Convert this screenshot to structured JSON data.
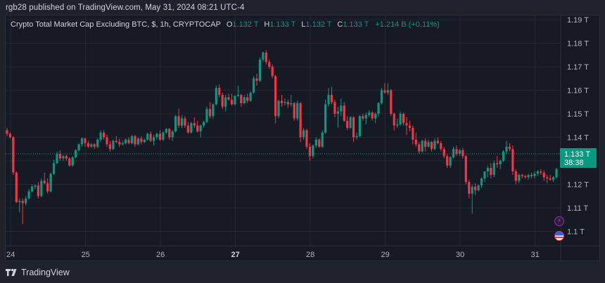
{
  "publisher_line": "rgb28 published on TradingView.com, May 31, 2024 08:21 UTC-4",
  "legend": {
    "title": "Crypto Total Market Cap Excluding BTC, $, 1h, CRYPTOCAP",
    "open_label": "O",
    "open": "1.132 T",
    "high_label": "H",
    "high": "1.133 T",
    "low_label": "L",
    "low": "1.132 T",
    "close_label": "C",
    "close": "1.133 T",
    "change": "+1.214 B (+0.11%)"
  },
  "price_tag": {
    "price": "1.133 T",
    "countdown": "38:38"
  },
  "footer": {
    "brand": "TradingView"
  },
  "colors": {
    "up": "#089981",
    "down": "#f23645",
    "background": "#161a25",
    "grid": "#232733",
    "price_line": "#089981"
  },
  "icons": [
    "lightning-event-icon",
    "us-flag-event-icon",
    "tradingview-logo-icon"
  ],
  "chart_data": {
    "type": "candlestick",
    "title": "Crypto Total Market Cap Excluding BTC, $, 1h, CRYPTOCAP",
    "xlabel": "",
    "ylabel": "",
    "x_ticks": [
      "24",
      "25",
      "26",
      "27",
      "28",
      "29",
      "30",
      "31"
    ],
    "bold_x_tick": "27",
    "y_ticks": [
      "1.19 T",
      "1.18 T",
      "1.17 T",
      "1.16 T",
      "1.15 T",
      "1.14 T",
      "1.13 T",
      "1.12 T",
      "1.11 T",
      "1.1 T"
    ],
    "ylim": [
      1.0945,
      1.1935
    ],
    "grid": true,
    "current_price": 1.133,
    "candles_ohlc": [
      [
        1.143,
        1.144,
        1.1405,
        1.1415
      ],
      [
        1.1415,
        1.142,
        1.1395,
        1.14
      ],
      [
        1.14,
        1.1405,
        1.124,
        1.125
      ],
      [
        1.125,
        1.1255,
        1.112,
        1.1125
      ],
      [
        1.1125,
        1.114,
        1.108,
        1.113
      ],
      [
        1.113,
        1.114,
        1.103,
        1.112
      ],
      [
        1.112,
        1.115,
        1.111,
        1.114
      ],
      [
        1.114,
        1.118,
        1.1135,
        1.117
      ],
      [
        1.117,
        1.12,
        1.1165,
        1.119
      ],
      [
        1.119,
        1.12,
        1.118,
        1.1195
      ],
      [
        1.1195,
        1.121,
        1.114,
        1.115
      ],
      [
        1.115,
        1.1225,
        1.1145,
        1.1215
      ],
      [
        1.1215,
        1.125,
        1.12,
        1.1205
      ],
      [
        1.1205,
        1.1225,
        1.116,
        1.117
      ],
      [
        1.117,
        1.125,
        1.1165,
        1.1245
      ],
      [
        1.1245,
        1.1305,
        1.124,
        1.129
      ],
      [
        1.129,
        1.134,
        1.1285,
        1.133
      ],
      [
        1.133,
        1.1345,
        1.13,
        1.131
      ],
      [
        1.131,
        1.1325,
        1.13,
        1.132
      ],
      [
        1.132,
        1.1325,
        1.13,
        1.131
      ],
      [
        1.131,
        1.1315,
        1.1275,
        1.128
      ],
      [
        1.128,
        1.132,
        1.1275,
        1.1315
      ],
      [
        1.1315,
        1.135,
        1.131,
        1.1345
      ],
      [
        1.1345,
        1.1375,
        1.134,
        1.137
      ],
      [
        1.137,
        1.14,
        1.136,
        1.1395
      ],
      [
        1.1395,
        1.1398,
        1.136,
        1.1375
      ],
      [
        1.1375,
        1.1385,
        1.1355,
        1.136
      ],
      [
        1.136,
        1.1375,
        1.1355,
        1.137
      ],
      [
        1.137,
        1.1375,
        1.135,
        1.136
      ],
      [
        1.136,
        1.1395,
        1.1355,
        1.139
      ],
      [
        1.139,
        1.143,
        1.138,
        1.142
      ],
      [
        1.142,
        1.143,
        1.139,
        1.14
      ],
      [
        1.14,
        1.141,
        1.136,
        1.137
      ],
      [
        1.137,
        1.1385,
        1.134,
        1.135
      ],
      [
        1.135,
        1.139,
        1.1345,
        1.1385
      ],
      [
        1.1385,
        1.1405,
        1.1375,
        1.138
      ],
      [
        1.138,
        1.1395,
        1.136,
        1.137
      ],
      [
        1.137,
        1.1385,
        1.1365,
        1.1375
      ],
      [
        1.1375,
        1.1395,
        1.137,
        1.139
      ],
      [
        1.139,
        1.14,
        1.137,
        1.1375
      ],
      [
        1.1375,
        1.141,
        1.137,
        1.1405
      ],
      [
        1.1405,
        1.141,
        1.136,
        1.137
      ],
      [
        1.137,
        1.14,
        1.1365,
        1.1395
      ],
      [
        1.1395,
        1.1405,
        1.137,
        1.138
      ],
      [
        1.138,
        1.1395,
        1.1375,
        1.139
      ],
      [
        1.139,
        1.142,
        1.1385,
        1.1415
      ],
      [
        1.1415,
        1.1425,
        1.138,
        1.1385
      ],
      [
        1.1385,
        1.141,
        1.1365,
        1.14
      ],
      [
        1.14,
        1.142,
        1.139,
        1.1415
      ],
      [
        1.1415,
        1.143,
        1.1385,
        1.139
      ],
      [
        1.139,
        1.1425,
        1.1385,
        1.142
      ],
      [
        1.142,
        1.144,
        1.1415,
        1.1435
      ],
      [
        1.1435,
        1.144,
        1.139,
        1.14
      ],
      [
        1.14,
        1.143,
        1.1385,
        1.1425
      ],
      [
        1.1425,
        1.1495,
        1.142,
        1.149
      ],
      [
        1.149,
        1.152,
        1.144,
        1.145
      ],
      [
        1.145,
        1.1495,
        1.144,
        1.148
      ],
      [
        1.148,
        1.149,
        1.144,
        1.145
      ],
      [
        1.145,
        1.1465,
        1.1415,
        1.142
      ],
      [
        1.142,
        1.1465,
        1.1415,
        1.146
      ],
      [
        1.146,
        1.1485,
        1.144,
        1.145
      ],
      [
        1.145,
        1.147,
        1.142,
        1.1425
      ],
      [
        1.1425,
        1.1455,
        1.14,
        1.145
      ],
      [
        1.145,
        1.147,
        1.144,
        1.1465
      ],
      [
        1.1465,
        1.153,
        1.146,
        1.152
      ],
      [
        1.152,
        1.155,
        1.148,
        1.149
      ],
      [
        1.149,
        1.1545,
        1.148,
        1.154
      ],
      [
        1.154,
        1.162,
        1.1535,
        1.161
      ],
      [
        1.161,
        1.1625,
        1.157,
        1.158
      ],
      [
        1.158,
        1.159,
        1.152,
        1.153
      ],
      [
        1.153,
        1.158,
        1.151,
        1.157
      ],
      [
        1.157,
        1.1585,
        1.1555,
        1.156
      ],
      [
        1.156,
        1.1585,
        1.1535,
        1.154
      ],
      [
        1.154,
        1.158,
        1.1535,
        1.1575
      ],
      [
        1.1575,
        1.162,
        1.157,
        1.158
      ],
      [
        1.158,
        1.1585,
        1.153,
        1.1545
      ],
      [
        1.1545,
        1.158,
        1.154,
        1.157
      ],
      [
        1.157,
        1.1585,
        1.1545,
        1.1555
      ],
      [
        1.1555,
        1.1595,
        1.155,
        1.159
      ],
      [
        1.159,
        1.166,
        1.1585,
        1.165
      ],
      [
        1.165,
        1.167,
        1.162,
        1.164
      ],
      [
        1.164,
        1.174,
        1.1635,
        1.173
      ],
      [
        1.173,
        1.1765,
        1.172,
        1.176
      ],
      [
        1.176,
        1.177,
        1.171,
        1.172
      ],
      [
        1.172,
        1.173,
        1.169,
        1.17
      ],
      [
        1.17,
        1.171,
        1.165,
        1.166
      ],
      [
        1.166,
        1.1665,
        1.146,
        1.149
      ],
      [
        1.149,
        1.156,
        1.148,
        1.1555
      ],
      [
        1.1555,
        1.158,
        1.153,
        1.1545
      ],
      [
        1.1545,
        1.1565,
        1.1535,
        1.155
      ],
      [
        1.155,
        1.156,
        1.1525,
        1.154
      ],
      [
        1.154,
        1.158,
        1.153,
        1.1545
      ],
      [
        1.1545,
        1.155,
        1.147,
        1.148
      ],
      [
        1.148,
        1.1555,
        1.147,
        1.1545
      ],
      [
        1.1545,
        1.155,
        1.138,
        1.14
      ],
      [
        1.14,
        1.144,
        1.139,
        1.143
      ],
      [
        1.143,
        1.1435,
        1.135,
        1.136
      ],
      [
        1.136,
        1.1375,
        1.13,
        1.132
      ],
      [
        1.132,
        1.137,
        1.131,
        1.1365
      ],
      [
        1.1365,
        1.14,
        1.1355,
        1.139
      ],
      [
        1.139,
        1.1395,
        1.1355,
        1.136
      ],
      [
        1.136,
        1.143,
        1.1355,
        1.142
      ],
      [
        1.142,
        1.156,
        1.1415,
        1.154
      ],
      [
        1.154,
        1.161,
        1.153,
        1.158
      ],
      [
        1.158,
        1.1615,
        1.154,
        1.155
      ],
      [
        1.155,
        1.156,
        1.1485,
        1.15
      ],
      [
        1.15,
        1.153,
        1.144,
        1.151
      ],
      [
        1.151,
        1.1565,
        1.149,
        1.1535
      ],
      [
        1.1535,
        1.155,
        1.1465,
        1.147
      ],
      [
        1.147,
        1.149,
        1.143,
        1.144
      ],
      [
        1.144,
        1.149,
        1.1435,
        1.1485
      ],
      [
        1.1485,
        1.149,
        1.138,
        1.14
      ],
      [
        1.14,
        1.142,
        1.139,
        1.1405
      ],
      [
        1.1405,
        1.1495,
        1.14,
        1.149
      ],
      [
        1.149,
        1.15,
        1.147,
        1.148
      ],
      [
        1.148,
        1.1505,
        1.1455,
        1.1495
      ],
      [
        1.1495,
        1.1515,
        1.1485,
        1.1505
      ],
      [
        1.1505,
        1.151,
        1.147,
        1.148
      ],
      [
        1.148,
        1.1505,
        1.146,
        1.15
      ],
      [
        1.15,
        1.155,
        1.149,
        1.1545
      ],
      [
        1.1545,
        1.161,
        1.154,
        1.16
      ],
      [
        1.16,
        1.163,
        1.1585,
        1.159
      ],
      [
        1.159,
        1.163,
        1.158,
        1.16
      ],
      [
        1.16,
        1.1605,
        1.149,
        1.15
      ],
      [
        1.15,
        1.1505,
        1.143,
        1.145
      ],
      [
        1.145,
        1.148,
        1.144,
        1.1455
      ],
      [
        1.1455,
        1.151,
        1.145,
        1.15
      ],
      [
        1.15,
        1.1505,
        1.145,
        1.146
      ],
      [
        1.146,
        1.1485,
        1.141,
        1.145
      ],
      [
        1.145,
        1.147,
        1.1425,
        1.144
      ],
      [
        1.144,
        1.145,
        1.137,
        1.139
      ],
      [
        1.139,
        1.142,
        1.136,
        1.137
      ],
      [
        1.137,
        1.138,
        1.133,
        1.134
      ],
      [
        1.134,
        1.139,
        1.1335,
        1.1385
      ],
      [
        1.1385,
        1.1395,
        1.134,
        1.136
      ],
      [
        1.136,
        1.139,
        1.1355,
        1.138
      ],
      [
        1.138,
        1.1385,
        1.134,
        1.135
      ],
      [
        1.135,
        1.1395,
        1.1345,
        1.1385
      ],
      [
        1.1385,
        1.14,
        1.137,
        1.1375
      ],
      [
        1.1375,
        1.1385,
        1.134,
        1.135
      ],
      [
        1.135,
        1.136,
        1.131,
        1.132
      ],
      [
        1.132,
        1.133,
        1.127,
        1.128
      ],
      [
        1.128,
        1.132,
        1.127,
        1.1315
      ],
      [
        1.1315,
        1.136,
        1.131,
        1.135
      ],
      [
        1.135,
        1.1365,
        1.132,
        1.133
      ],
      [
        1.133,
        1.135,
        1.132,
        1.1345
      ],
      [
        1.1345,
        1.1355,
        1.131,
        1.132
      ],
      [
        1.132,
        1.1325,
        1.12,
        1.121
      ],
      [
        1.121,
        1.122,
        1.114,
        1.116
      ],
      [
        1.116,
        1.12,
        1.1075,
        1.119
      ],
      [
        1.119,
        1.1205,
        1.1155,
        1.1175
      ],
      [
        1.1175,
        1.12,
        1.117,
        1.1195
      ],
      [
        1.1195,
        1.123,
        1.1185,
        1.1225
      ],
      [
        1.1225,
        1.1255,
        1.121,
        1.1255
      ],
      [
        1.1255,
        1.128,
        1.123,
        1.127
      ],
      [
        1.127,
        1.129,
        1.1225,
        1.124
      ],
      [
        1.124,
        1.13,
        1.123,
        1.129
      ],
      [
        1.129,
        1.132,
        1.127,
        1.1285
      ],
      [
        1.1285,
        1.1305,
        1.1265,
        1.13
      ],
      [
        1.13,
        1.1345,
        1.1295,
        1.134
      ],
      [
        1.134,
        1.1385,
        1.133,
        1.136
      ],
      [
        1.136,
        1.1375,
        1.134,
        1.135
      ],
      [
        1.135,
        1.1365,
        1.124,
        1.1255
      ],
      [
        1.1255,
        1.1265,
        1.12,
        1.1215
      ],
      [
        1.1215,
        1.1245,
        1.1205,
        1.124
      ],
      [
        1.124,
        1.1245,
        1.1225,
        1.1235
      ],
      [
        1.1235,
        1.124,
        1.1225,
        1.123
      ],
      [
        1.123,
        1.1245,
        1.122,
        1.124
      ],
      [
        1.124,
        1.125,
        1.1225,
        1.1235
      ],
      [
        1.1235,
        1.1255,
        1.1225,
        1.1245
      ],
      [
        1.1245,
        1.126,
        1.1235,
        1.1255
      ],
      [
        1.1255,
        1.1265,
        1.124,
        1.125
      ],
      [
        1.125,
        1.126,
        1.1215,
        1.123
      ],
      [
        1.123,
        1.124,
        1.1205,
        1.1225
      ],
      [
        1.1225,
        1.124,
        1.1215,
        1.122
      ],
      [
        1.122,
        1.1235,
        1.121,
        1.123
      ],
      [
        1.123,
        1.127,
        1.1225,
        1.1265
      ],
      [
        1.1265,
        1.131,
        1.126,
        1.1305
      ],
      [
        1.1305,
        1.134,
        1.13,
        1.133
      ],
      [
        1.133,
        1.134,
        1.132,
        1.1325
      ],
      [
        1.1325,
        1.1335,
        1.132,
        1.133
      ]
    ]
  }
}
